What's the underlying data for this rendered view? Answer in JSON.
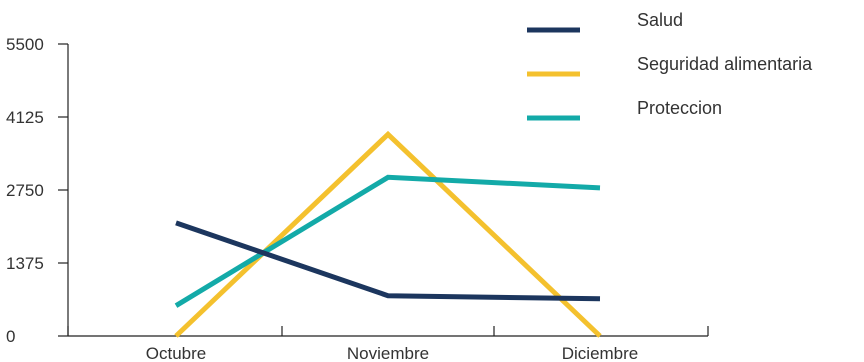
{
  "chart_data": {
    "type": "line",
    "title": "",
    "xlabel": "",
    "ylabel": "",
    "categories": [
      "Octubre",
      "Noviembre",
      "Diciembre"
    ],
    "ylim": [
      0,
      5500
    ],
    "yticks": [
      "0",
      "1375",
      "2750",
      "4125",
      "5500"
    ],
    "grid": false,
    "legend_position": "top-right",
    "series": [
      {
        "name": "Salud",
        "values": [
          2130,
          760,
          700
        ],
        "color": "#1c365e"
      },
      {
        "name": "Seguridad alimentaria",
        "values": [
          0,
          3800,
          0
        ],
        "color": "#f4c12e"
      },
      {
        "name": "Proteccion",
        "values": [
          570,
          2990,
          2790
        ],
        "color": "#13aaa8"
      }
    ]
  }
}
